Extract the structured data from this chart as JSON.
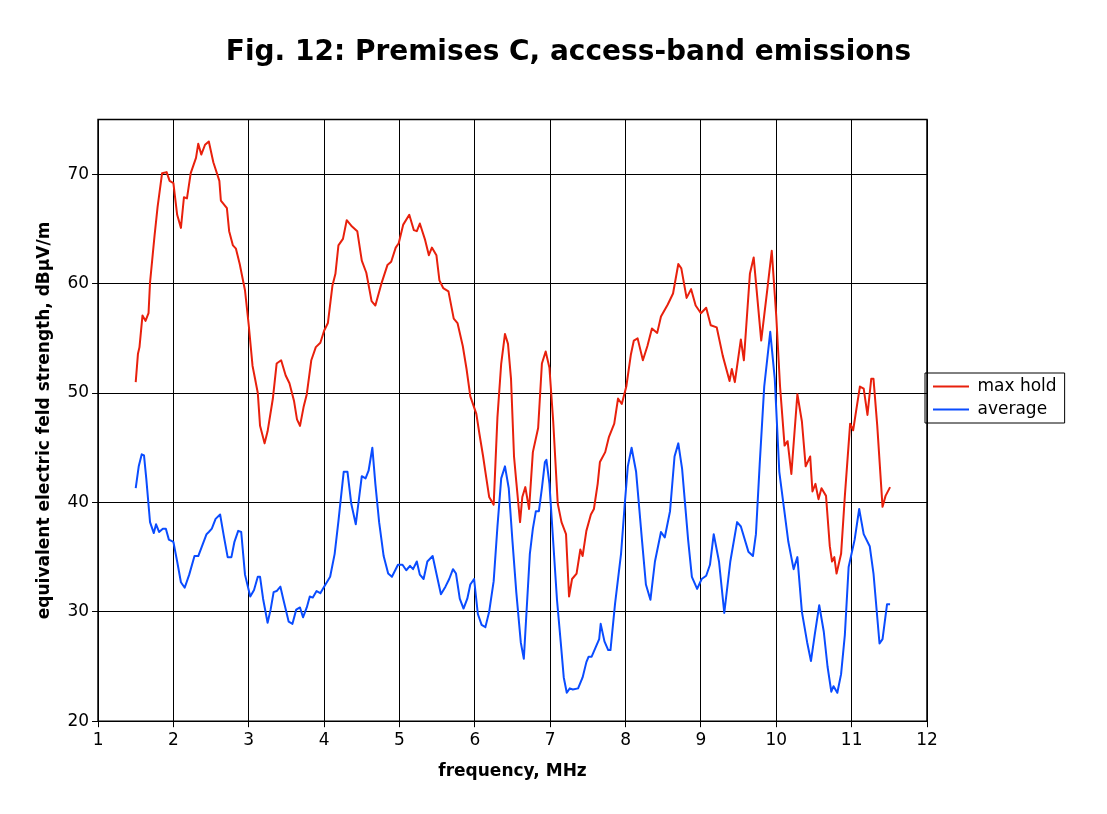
{
  "chart_data": {
    "type": "line",
    "title": "Fig. 12: Premises C, access-band emissions",
    "xlabel": "frequency, MHz",
    "ylabel": "equivalent electric feld strength, dBµV/m",
    "xlim": [
      1,
      12
    ],
    "xticks": [
      1,
      2,
      3,
      4,
      5,
      6,
      7,
      8,
      9,
      10,
      11,
      12
    ],
    "ylim": [
      20,
      75
    ],
    "yticks": [
      20,
      30,
      40,
      50,
      60,
      70
    ],
    "grid": true,
    "legend": "right",
    "marker": "none",
    "line_style": "solid",
    "series": [
      {
        "name": "max hold",
        "color": "#e8200c",
        "x": [
          1.5,
          1.53,
          1.55,
          1.59,
          1.63,
          1.67,
          1.69,
          1.75,
          1.79,
          1.85,
          1.91,
          1.95,
          2.0,
          2.05,
          2.1,
          2.14,
          2.18,
          2.23,
          2.3,
          2.33,
          2.37,
          2.42,
          2.47,
          2.53,
          2.61,
          2.63,
          2.71,
          2.74,
          2.79,
          2.83,
          2.88,
          2.95,
          3.0,
          3.05,
          3.12,
          3.15,
          3.21,
          3.25,
          3.32,
          3.37,
          3.43,
          3.49,
          3.54,
          3.6,
          3.64,
          3.68,
          3.73,
          3.77,
          3.83,
          3.89,
          3.95,
          4.0,
          4.05,
          4.11,
          4.15,
          4.19,
          4.25,
          4.3,
          4.36,
          4.44,
          4.5,
          4.56,
          4.63,
          4.68,
          4.76,
          4.84,
          4.89,
          4.95,
          4.99,
          5.05,
          5.13,
          5.19,
          5.23,
          5.27,
          5.34,
          5.39,
          5.43,
          5.49,
          5.53,
          5.58,
          5.65,
          5.72,
          5.77,
          5.84,
          5.89,
          5.94,
          6.02,
          6.06,
          6.11,
          6.14,
          6.19,
          6.25,
          6.3,
          6.35,
          6.4,
          6.44,
          6.48,
          6.52,
          6.55,
          6.6,
          6.63,
          6.67,
          6.72,
          6.77,
          6.84,
          6.89,
          6.94,
          6.99,
          7.04,
          7.1,
          7.15,
          7.21,
          7.25,
          7.29,
          7.35,
          7.4,
          7.43,
          7.48,
          7.54,
          7.58,
          7.63,
          7.66,
          7.73,
          7.78,
          7.85,
          7.9,
          7.95,
          8.01,
          8.07,
          8.11,
          8.16,
          8.23,
          8.29,
          8.35,
          8.42,
          8.47,
          8.56,
          8.63,
          8.7,
          8.74,
          8.81,
          8.87,
          8.93,
          9.0,
          9.07,
          9.13,
          9.21,
          9.29,
          9.38,
          9.41,
          9.45,
          9.53,
          9.57,
          9.65,
          9.7,
          9.8,
          9.88,
          9.94,
          10.0,
          10.05,
          10.11,
          10.15,
          10.2,
          10.28,
          10.34,
          10.39,
          10.45,
          10.48,
          10.52,
          10.56,
          10.6,
          10.66,
          10.71,
          10.74,
          10.77,
          10.8,
          10.86,
          10.91,
          10.98,
          11.02,
          11.06,
          11.11,
          11.16,
          11.21,
          11.26,
          11.29,
          11.34,
          11.41,
          11.45,
          11.51
        ],
        "values": [
          51,
          53.6,
          54.2,
          57.1,
          56.6,
          57.3,
          60.1,
          64.4,
          67,
          70.1,
          70.2,
          69.4,
          69.2,
          66.3,
          65.1,
          67.9,
          67.8,
          70.1,
          71.5,
          72.8,
          71.8,
          72.7,
          73,
          71.1,
          69.4,
          67.6,
          66.9,
          64.8,
          63.5,
          63.2,
          61.8,
          59.4,
          56.2,
          52.5,
          50,
          47,
          45.4,
          46.5,
          49.5,
          52.7,
          53,
          51.6,
          50.9,
          49.3,
          47.6,
          47,
          48.8,
          49.9,
          53,
          54.2,
          54.6,
          55.7,
          56.4,
          59.8,
          60.9,
          63.5,
          64.1,
          65.8,
          65.3,
          64.8,
          62.1,
          61,
          58.4,
          58,
          60,
          61.7,
          62,
          63.3,
          63.7,
          65.4,
          66.3,
          64.9,
          64.8,
          65.5,
          64,
          62.6,
          63.3,
          62.6,
          60.3,
          59.6,
          59.3,
          56.8,
          56.4,
          54.3,
          52.2,
          49.7,
          48.1,
          46.3,
          44.2,
          42.8,
          40.5,
          39.8,
          47.8,
          52.7,
          55.4,
          54.5,
          51.3,
          44.2,
          41.9,
          38.2,
          40.5,
          41.4,
          39.4,
          44.6,
          46.8,
          52.7,
          53.8,
          52.3,
          47.4,
          39.9,
          38.2,
          37.1,
          31.4,
          33,
          33.5,
          35.7,
          35.1,
          37.4,
          38.9,
          39.4,
          41.7,
          43.7,
          44.6,
          46,
          47.2,
          49.5,
          49,
          50.6,
          53.5,
          54.8,
          55,
          53,
          54.3,
          55.9,
          55.5,
          57,
          58.1,
          59.1,
          61.8,
          61.4,
          58.7,
          59.5,
          58,
          57.3,
          57.8,
          56.2,
          56,
          53.4,
          51.1,
          52.2,
          51,
          54.9,
          53,
          60.9,
          62.4,
          54.8,
          59.4,
          63,
          57,
          50.6,
          45.2,
          45.6,
          42.6,
          49.9,
          47.4,
          43.3,
          44.2,
          41,
          41.7,
          40.3,
          41.3,
          40.6,
          36,
          34.6,
          35,
          33.5,
          35.3,
          40.6,
          47.2,
          46.6,
          48.4,
          50.6,
          50.4,
          48,
          51.3,
          51.3,
          47,
          39.6,
          40.6,
          41.4
        ]
      },
      {
        "name": "average",
        "color": "#0a4cff",
        "x": [
          1.5,
          1.54,
          1.58,
          1.61,
          1.64,
          1.69,
          1.74,
          1.77,
          1.81,
          1.86,
          1.9,
          1.94,
          2.0,
          2.05,
          2.1,
          2.15,
          2.21,
          2.28,
          2.33,
          2.38,
          2.44,
          2.47,
          2.51,
          2.56,
          2.62,
          2.67,
          2.72,
          2.77,
          2.81,
          2.86,
          2.9,
          2.95,
          3.02,
          3.07,
          3.12,
          3.15,
          3.19,
          3.25,
          3.29,
          3.33,
          3.37,
          3.42,
          3.46,
          3.53,
          3.58,
          3.63,
          3.68,
          3.72,
          3.77,
          3.81,
          3.85,
          3.9,
          3.95,
          4.0,
          4.08,
          4.14,
          4.19,
          4.26,
          4.31,
          4.36,
          4.42,
          4.5,
          4.55,
          4.59,
          4.64,
          4.68,
          4.73,
          4.79,
          4.85,
          4.9,
          4.98,
          5.04,
          5.09,
          5.14,
          5.18,
          5.23,
          5.27,
          5.32,
          5.37,
          5.44,
          5.49,
          5.55,
          5.61,
          5.66,
          5.71,
          5.75,
          5.8,
          5.85,
          5.9,
          5.94,
          5.99,
          6.04,
          6.09,
          6.14,
          6.19,
          6.25,
          6.3,
          6.35,
          6.4,
          6.45,
          6.5,
          6.55,
          6.61,
          6.65,
          6.68,
          6.73,
          6.77,
          6.81,
          6.85,
          6.89,
          6.93,
          6.95,
          6.99,
          7.04,
          7.09,
          7.14,
          7.18,
          7.22,
          7.26,
          7.3,
          7.37,
          7.43,
          7.48,
          7.51,
          7.55,
          7.6,
          7.65,
          7.67,
          7.72,
          7.77,
          7.8,
          7.86,
          7.94,
          7.99,
          8.03,
          8.08,
          8.14,
          8.22,
          8.27,
          8.33,
          8.39,
          8.47,
          8.52,
          8.59,
          8.65,
          8.7,
          8.75,
          8.83,
          8.88,
          8.95,
          9.01,
          9.07,
          9.12,
          9.17,
          9.24,
          9.31,
          9.39,
          9.48,
          9.53,
          9.63,
          9.69,
          9.73,
          9.78,
          9.84,
          9.92,
          9.98,
          10.04,
          10.1,
          10.16,
          10.23,
          10.28,
          10.34,
          10.41,
          10.46,
          10.51,
          10.57,
          10.63,
          10.68,
          10.73,
          10.76,
          10.81,
          10.86,
          10.91,
          10.96,
          11.04,
          11.1,
          11.16,
          11.24,
          11.29,
          11.37,
          11.41,
          11.47,
          11.51
        ],
        "values": [
          41.3,
          43.3,
          44.4,
          44.3,
          42.2,
          38.2,
          37.2,
          38,
          37.3,
          37.6,
          37.6,
          36.6,
          36.4,
          34.6,
          32.7,
          32.2,
          33.4,
          35.1,
          35.1,
          36,
          37.1,
          37.3,
          37.6,
          38.5,
          38.9,
          36.9,
          35,
          35,
          36.4,
          37.4,
          37.3,
          33.4,
          31.4,
          32,
          33.2,
          33.2,
          31.2,
          29,
          30.2,
          31.8,
          31.9,
          32.3,
          31.1,
          29.1,
          28.9,
          30.2,
          30.4,
          29.5,
          30.4,
          31.4,
          31.3,
          31.9,
          31.7,
          32.3,
          33.2,
          35.3,
          38.3,
          42.8,
          42.8,
          39.9,
          38,
          42.4,
          42.2,
          42.9,
          45,
          41.7,
          38.2,
          35.1,
          33.5,
          33.2,
          34.3,
          34.3,
          33.8,
          34.2,
          33.9,
          34.6,
          33.4,
          33,
          34.6,
          35.1,
          33.5,
          31.6,
          32.3,
          33,
          33.9,
          33.5,
          31.2,
          30.3,
          31.2,
          32.5,
          33,
          29.8,
          28.8,
          28.6,
          30,
          32.8,
          37.8,
          42.2,
          43.3,
          41.3,
          36.4,
          31.8,
          27.2,
          25.7,
          29.3,
          35.3,
          37.6,
          39.2,
          39.2,
          41.3,
          43.7,
          43.9,
          41.7,
          36.4,
          31.1,
          27.2,
          24,
          22.6,
          23,
          22.9,
          23,
          24,
          25.4,
          25.9,
          25.9,
          26.7,
          27.5,
          28.9,
          27.3,
          26.5,
          26.5,
          30.7,
          35.3,
          39.9,
          43.3,
          45,
          42.8,
          36.4,
          32.5,
          31.1,
          34.6,
          37.3,
          36.8,
          39.2,
          44.2,
          45.4,
          43.1,
          36.6,
          33.2,
          32.1,
          33,
          33.3,
          34.3,
          37.1,
          34.6,
          29.9,
          34.6,
          38.2,
          37.8,
          35.5,
          35.1,
          37.1,
          43.5,
          50.6,
          55.6,
          51.3,
          42.8,
          39.6,
          36.4,
          33.9,
          35,
          30,
          27.2,
          25.5,
          27.9,
          30.6,
          28.2,
          25,
          22.7,
          23.2,
          22.6,
          24.3,
          27.9,
          34.1,
          36.6,
          39.4,
          37.1,
          36,
          33.5,
          27.1,
          27.5,
          30.7,
          30.7
        ]
      }
    ]
  }
}
